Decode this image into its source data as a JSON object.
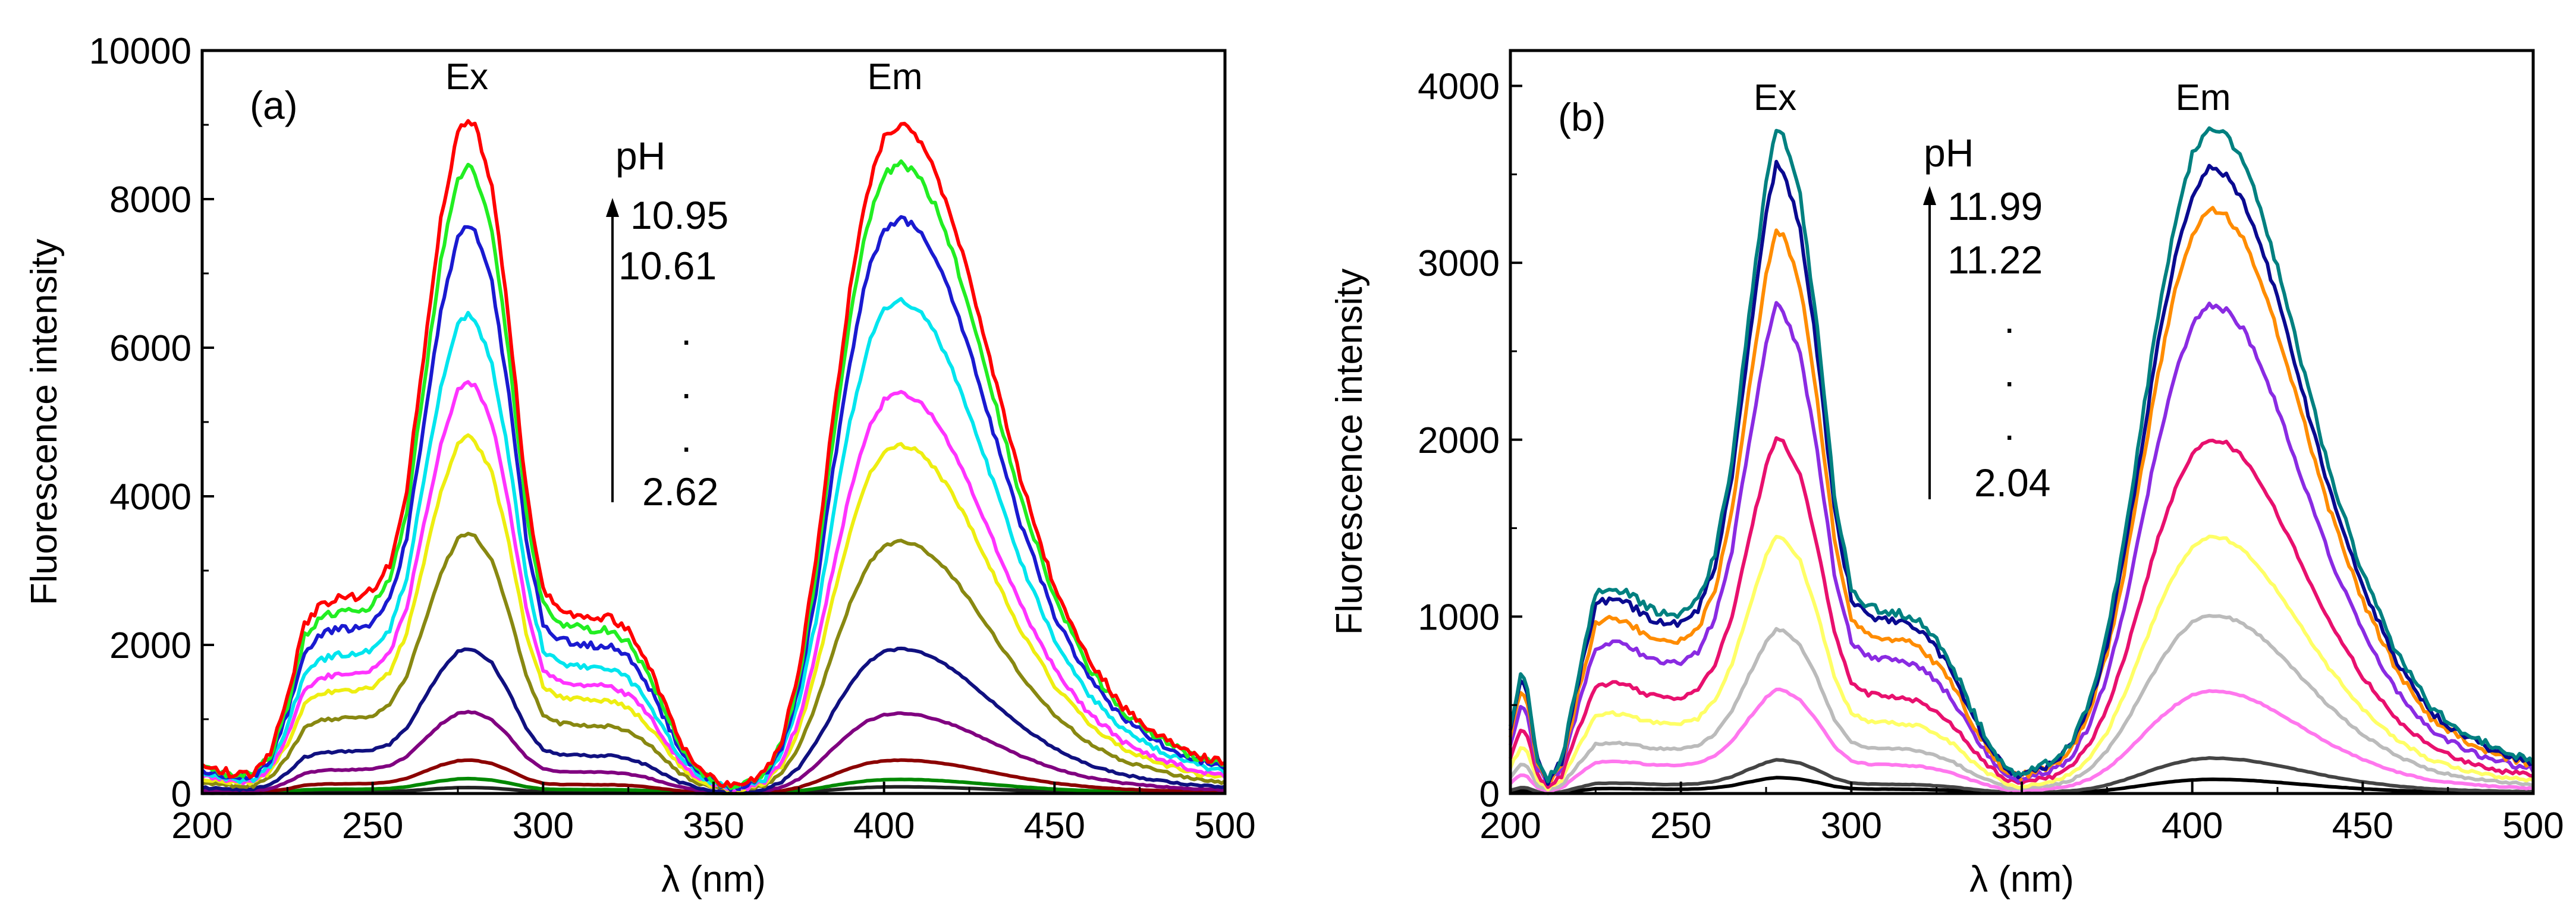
{
  "chart_data": [
    {
      "type": "line",
      "panel": "(a)",
      "xlabel": "λ (nm)",
      "ylabel": "Fluorescence intensity",
      "xlim": [
        200,
        500
      ],
      "ylim": [
        0,
        10000
      ],
      "xticks": [
        200,
        250,
        300,
        350,
        400,
        450,
        500
      ],
      "yticks": [
        0,
        2000,
        4000,
        6000,
        8000,
        10000
      ],
      "annotations": {
        "ex": "Ex",
        "em": "Em",
        "ph_title": "pH",
        "ph_values": [
          "10.95",
          "10.61",
          ".",
          ".",
          ".",
          "2.62"
        ]
      },
      "shape": {
        "ex_x": [
          200,
          205,
          210,
          215,
          220,
          225,
          230,
          235,
          240,
          245,
          250,
          255,
          260,
          265,
          270,
          275,
          278,
          280,
          285,
          290,
          295,
          300,
          305,
          310,
          315,
          320,
          325,
          330,
          335,
          340,
          345,
          350,
          355,
          358
        ],
        "ex_y": [
          0.04,
          0.035,
          0.028,
          0.03,
          0.06,
          0.14,
          0.25,
          0.28,
          0.29,
          0.29,
          0.3,
          0.34,
          0.45,
          0.65,
          0.85,
          0.98,
          1.0,
          0.99,
          0.9,
          0.7,
          0.45,
          0.3,
          0.27,
          0.265,
          0.26,
          0.26,
          0.24,
          0.2,
          0.14,
          0.08,
          0.04,
          0.02,
          0.012,
          0.01
        ],
        "em_x": [
          358,
          365,
          370,
          375,
          380,
          385,
          390,
          395,
          400,
          405,
          410,
          415,
          420,
          425,
          430,
          435,
          440,
          445,
          450,
          460,
          470,
          480,
          490,
          500
        ],
        "em_y": [
          0.01,
          0.03,
          0.08,
          0.18,
          0.35,
          0.56,
          0.75,
          0.9,
          0.98,
          1.0,
          0.98,
          0.93,
          0.86,
          0.77,
          0.67,
          0.57,
          0.47,
          0.39,
          0.31,
          0.2,
          0.13,
          0.09,
          0.06,
          0.045
        ]
      },
      "series": [
        {
          "name": "pH 10.95",
          "color": "#ff0000",
          "ex_peak": 9100,
          "em_peak": 9000
        },
        {
          "name": "",
          "color": "#22ee22",
          "ex_peak": 8450,
          "em_peak": 8500
        },
        {
          "name": "10.61",
          "color": "#1a1ad0",
          "ex_peak": 7650,
          "em_peak": 7750
        },
        {
          "name": "",
          "color": "#00e5ee",
          "ex_peak": 6450,
          "em_peak": 6650
        },
        {
          "name": "",
          "color": "#ff33ff",
          "ex_peak": 5550,
          "em_peak": 5400
        },
        {
          "name": "",
          "color": "#eeee11",
          "ex_peak": 4800,
          "em_peak": 4700
        },
        {
          "name": "",
          "color": "#888811",
          "ex_peak": 3500,
          "em_peak": 3400
        },
        {
          "name": "",
          "color": "#101080",
          "ex_peak": 1950,
          "em_peak": 1950
        },
        {
          "name": "",
          "color": "#800080",
          "ex_peak": 1100,
          "em_peak": 1080
        },
        {
          "name": "",
          "color": "#8b0000",
          "ex_peak": 450,
          "em_peak": 450
        },
        {
          "name": "",
          "color": "#008800",
          "ex_peak": 200,
          "em_peak": 190
        },
        {
          "name": "pH 2.62",
          "color": "#222222",
          "ex_peak": 80,
          "em_peak": 90
        }
      ]
    },
    {
      "type": "line",
      "panel": "(b)",
      "xlabel": "λ (nm)",
      "ylabel": "Fluorescence intensity",
      "xlim": [
        200,
        500
      ],
      "ylim": [
        0,
        4200
      ],
      "xticks": [
        200,
        250,
        300,
        350,
        400,
        450,
        500
      ],
      "yticks": [
        0,
        1000,
        2000,
        3000,
        4000
      ],
      "annotations": {
        "ex": "Ex",
        "em": "Em",
        "ph_title": "pH",
        "ph_values": [
          "11.99",
          "11.22",
          ".",
          ".",
          ".",
          "2.04"
        ]
      },
      "shape": {
        "ex_x": [
          200,
          203,
          205,
          208,
          211,
          215,
          220,
          225,
          230,
          235,
          240,
          245,
          250,
          255,
          260,
          265,
          270,
          275,
          278,
          280,
          285,
          290,
          295,
          300,
          305,
          310,
          315,
          320,
          325,
          330,
          335,
          340,
          345,
          350
        ],
        "ex_y": [
          0.1,
          0.18,
          0.16,
          0.05,
          0.02,
          0.05,
          0.18,
          0.3,
          0.31,
          0.3,
          0.28,
          0.27,
          0.27,
          0.29,
          0.36,
          0.5,
          0.72,
          0.92,
          1.0,
          0.99,
          0.9,
          0.7,
          0.45,
          0.31,
          0.28,
          0.275,
          0.27,
          0.26,
          0.23,
          0.19,
          0.13,
          0.08,
          0.04,
          0.025
        ],
        "em_x": [
          350,
          360,
          365,
          370,
          375,
          380,
          385,
          390,
          395,
          400,
          405,
          410,
          415,
          420,
          425,
          430,
          435,
          440,
          445,
          450,
          460,
          470,
          480,
          490,
          500
        ],
        "em_y": [
          0.03,
          0.05,
          0.08,
          0.14,
          0.24,
          0.38,
          0.55,
          0.72,
          0.86,
          0.96,
          1.0,
          0.99,
          0.95,
          0.88,
          0.79,
          0.69,
          0.59,
          0.49,
          0.41,
          0.33,
          0.21,
          0.13,
          0.09,
          0.065,
          0.05
        ]
      },
      "series": [
        {
          "name": "pH 11.99",
          "color": "#008080",
          "ex_peak": 3760,
          "em_peak": 3760
        },
        {
          "name": "11.22",
          "color": "#0a0a90",
          "ex_peak": 3560,
          "em_peak": 3530
        },
        {
          "name": "",
          "color": "#ff8c00",
          "ex_peak": 3190,
          "em_peak": 3300
        },
        {
          "name": "",
          "color": "#8a2be2",
          "ex_peak": 2760,
          "em_peak": 2760
        },
        {
          "name": "",
          "color": "#e8106e",
          "ex_peak": 2010,
          "em_peak": 2000
        },
        {
          "name": "",
          "color": "#ffff66",
          "ex_peak": 1460,
          "em_peak": 1450
        },
        {
          "name": "",
          "color": "#bbbbbb",
          "ex_peak": 930,
          "em_peak": 1010
        },
        {
          "name": "",
          "color": "#ff77ee",
          "ex_peak": 590,
          "em_peak": 580
        },
        {
          "name": "",
          "color": "#444444",
          "ex_peak": 190,
          "em_peak": 200
        },
        {
          "name": "pH 2.04",
          "color": "#000000",
          "ex_peak": 90,
          "em_peak": 80
        }
      ]
    }
  ]
}
